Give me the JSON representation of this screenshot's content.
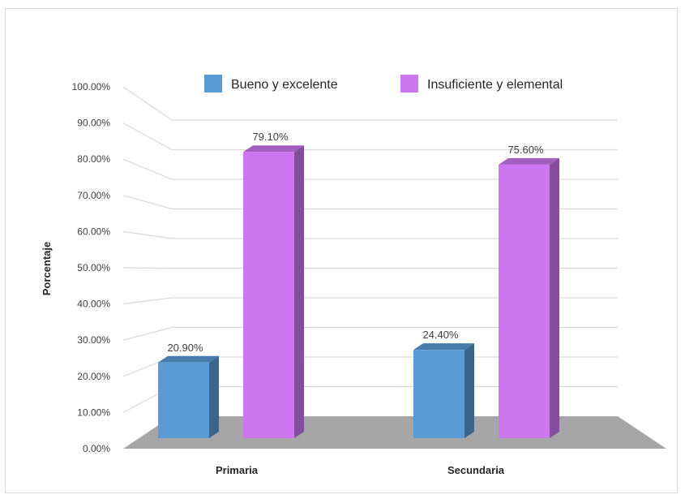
{
  "chart_data": {
    "type": "bar",
    "title": "",
    "xlabel": "",
    "ylabel": "Porcentaje",
    "categories": [
      "Primaria",
      "Secundaria"
    ],
    "series": [
      {
        "name": "Bueno y excelente",
        "values": [
          20.9,
          24.4
        ],
        "labels": [
          "20.90%",
          "24.40%"
        ],
        "color": "#5b9bd5"
      },
      {
        "name": "Insuficiente y elemental",
        "values": [
          79.1,
          75.6
        ],
        "labels": [
          "79.10%",
          "75.60%"
        ],
        "color": "#cc77f0"
      }
    ],
    "ylim": [
      0,
      100
    ],
    "yticks": [
      "0.00%",
      "10.00%",
      "20.00%",
      "30.00%",
      "40.00%",
      "50.00%",
      "60.00%",
      "70.00%",
      "80.00%",
      "90.00%",
      "100.00%"
    ],
    "grid": true,
    "legend": "top-center",
    "style": "3d-column"
  }
}
